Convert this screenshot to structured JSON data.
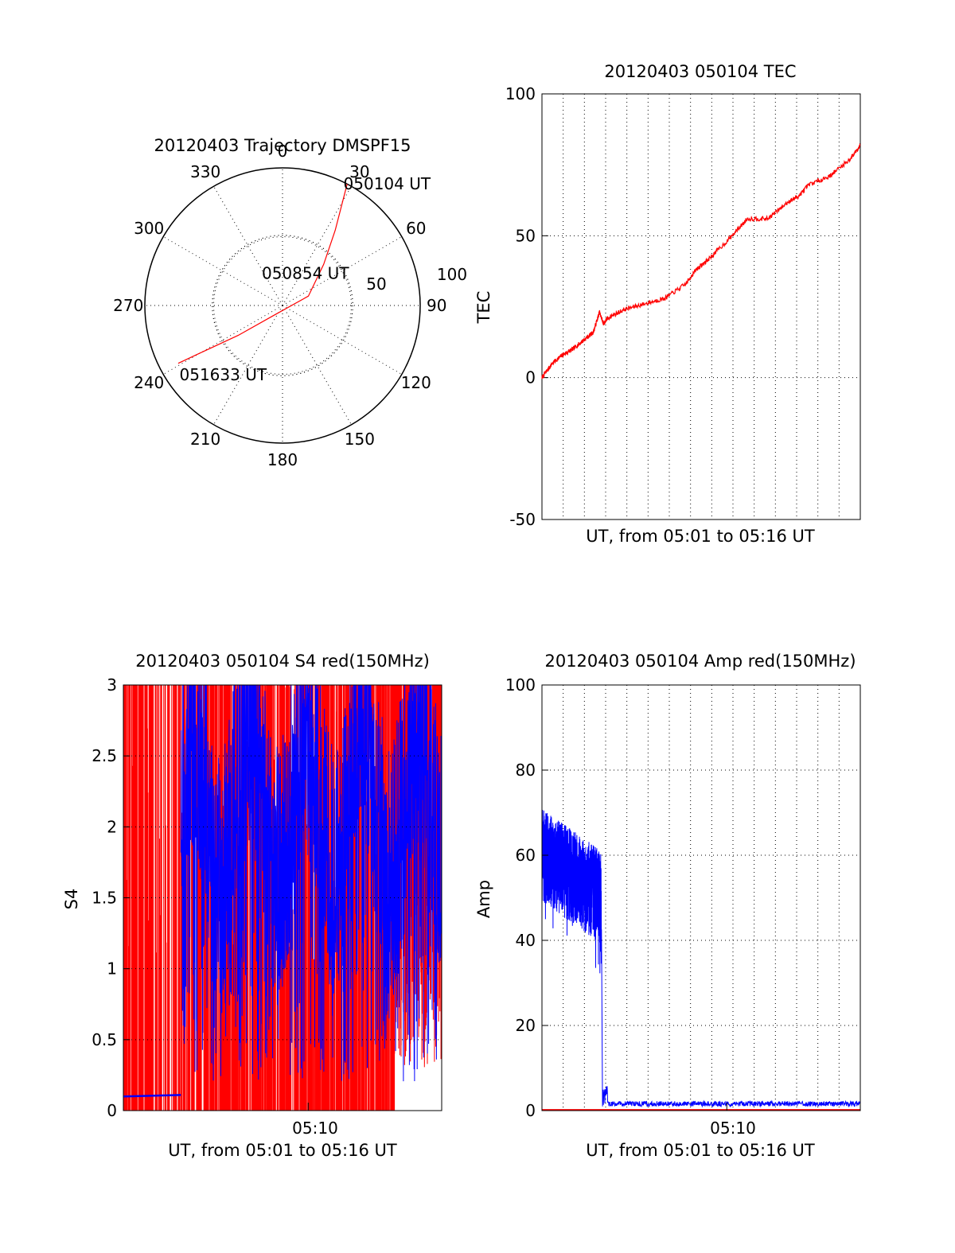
{
  "colors": {
    "red": "#ff0000",
    "blue": "#0000ff",
    "axis": "#000000",
    "grid": "#000000"
  },
  "chart_data": [
    {
      "id": "trajectory",
      "type": "polar",
      "title": "20120403 Trajectory DMSPF15",
      "angle_labels": [
        "0",
        "30",
        "60",
        "90",
        "120",
        "150",
        "180",
        "210",
        "240",
        "270",
        "300",
        "330"
      ],
      "radial_labels": [
        "50",
        "100"
      ],
      "track": [
        {
          "az": 28,
          "zen": 90
        },
        {
          "az": 35,
          "zen": 60
        },
        {
          "az": 45,
          "zen": 38
        },
        {
          "az": 70,
          "zen": 18
        },
        {
          "az": 220,
          "zen": 8
        },
        {
          "az": 236,
          "zen": 35
        },
        {
          "az": 240,
          "zen": 62
        },
        {
          "az": 241,
          "zen": 78
        }
      ],
      "annotations": [
        {
          "text": "050104 UT",
          "az": 27,
          "zen": 90
        },
        {
          "text": "050854 UT",
          "az": 330,
          "zen": 25
        },
        {
          "text": "051633 UT",
          "az": 236,
          "zen": 80
        }
      ]
    },
    {
      "id": "tec",
      "type": "line",
      "title": "20120403 050104 TEC",
      "ylabel": "TEC",
      "xlabel": "UT, from 05:01 to 05:16 UT",
      "ylim": [
        -50,
        100
      ],
      "yticks": [
        "-50",
        "0",
        "50",
        "100"
      ],
      "xlim_minutes": [
        0,
        15.5
      ],
      "series": [
        {
          "color": "red",
          "x": [
            0,
            0.5,
            1,
            1.5,
            2,
            2.5,
            2.8,
            3,
            3.2,
            4,
            5,
            6,
            7,
            7.5,
            8,
            9,
            10,
            11,
            12,
            12.5,
            13,
            14,
            15,
            15.5
          ],
          "y": [
            0,
            5,
            8,
            10,
            13,
            16,
            23,
            19,
            21,
            24,
            26,
            28,
            33,
            38,
            41,
            48,
            56,
            56,
            62,
            64,
            68,
            71,
            77,
            82
          ]
        }
      ]
    },
    {
      "id": "s4",
      "type": "line",
      "title": "20120403 050104 S4 red(150MHz)",
      "ylabel": "S4",
      "xlabel": "UT, from 05:01 to 05:16 UT",
      "xticklabel": "05:10",
      "xtick_minute": 9,
      "ylim": [
        0,
        3
      ],
      "yticks": [
        "0",
        "0.5",
        "1",
        "1.5",
        "2",
        "2.5",
        "3"
      ],
      "xlim_minutes": [
        0,
        15.5
      ],
      "series": [
        {
          "color": "blue",
          "name": "",
          "x": [
            0,
            2.8
          ],
          "y": [
            0.1,
            0.11
          ]
        },
        {
          "color": "red",
          "name": "",
          "x": [
            0,
            15.5
          ],
          "y": [
            0,
            3
          ]
        }
      ]
    },
    {
      "id": "amp",
      "type": "line",
      "title": "20120403 050104 Amp red(150MHz)",
      "ylabel": "Amp",
      "xlabel": "UT, from 05:01 to 05:16 UT",
      "xticklabel": "05:10",
      "xtick_minute": 9,
      "ylim": [
        0,
        100
      ],
      "yticks": [
        "0",
        "20",
        "40",
        "60",
        "80",
        "100"
      ],
      "xlim_minutes": [
        0,
        15.5
      ],
      "series": [
        {
          "color": "blue",
          "x": [
            0,
            1,
            2,
            2.9,
            3.0,
            3.2,
            5,
            10,
            15.5
          ],
          "y": [
            60,
            57,
            52,
            48,
            1.5,
            1.5,
            1.2,
            1.0,
            1.5
          ]
        },
        {
          "color": "red",
          "x": [
            0,
            15.5
          ],
          "y": [
            0.2,
            0.2
          ]
        }
      ]
    }
  ]
}
